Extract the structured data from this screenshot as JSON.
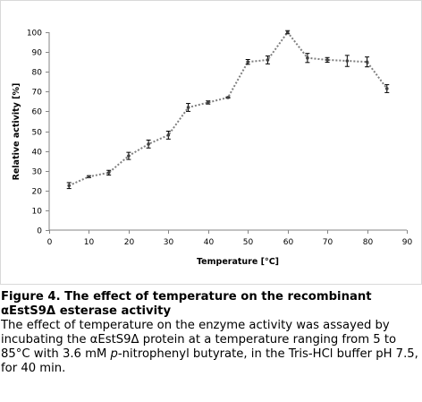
{
  "chart_data": {
    "type": "line",
    "xlabel": "Temperature [°C]",
    "ylabel": "Relative activity [%]",
    "xlim": [
      0,
      90
    ],
    "ylim": [
      0,
      100
    ],
    "xticks": [
      0,
      10,
      20,
      30,
      40,
      50,
      60,
      70,
      80,
      90
    ],
    "yticks": [
      0,
      10,
      20,
      30,
      40,
      50,
      60,
      70,
      80,
      90,
      100
    ],
    "grid": false,
    "legend": "none",
    "series": [
      {
        "x": [
          5,
          10,
          15,
          20,
          25,
          30,
          35,
          40,
          45,
          50,
          55,
          60,
          65,
          70,
          75,
          80,
          85
        ],
        "y": [
          22.5,
          27,
          29,
          37.5,
          43.5,
          48,
          62,
          64.5,
          67,
          85,
          86,
          100,
          87,
          86,
          85.5,
          85,
          71.5
        ],
        "error": [
          1.5,
          0.5,
          1.2,
          1.8,
          2,
          2,
          2,
          0.8,
          0.3,
          1.2,
          2,
          0.8,
          2.3,
          1.2,
          2.8,
          2.5,
          2
        ]
      }
    ],
    "colors": {
      "line": "#7f7f7f",
      "marker": "#404040",
      "axis": "#868686"
    }
  },
  "caption": {
    "title": "Figure 4. The effect of temperature on the recombinant αEstS9Δ esterase activity",
    "body_before": "The effect of temperature on the enzyme activity was assayed by incubating the αEstS9Δ protein at a temperature ranging from 5 to 85°C with 3.6 mM ",
    "body_italic": "p",
    "body_after": "-nitrophenyl butyrate, in the Tris-HCl buffer pH 7.5, for 40 min."
  }
}
